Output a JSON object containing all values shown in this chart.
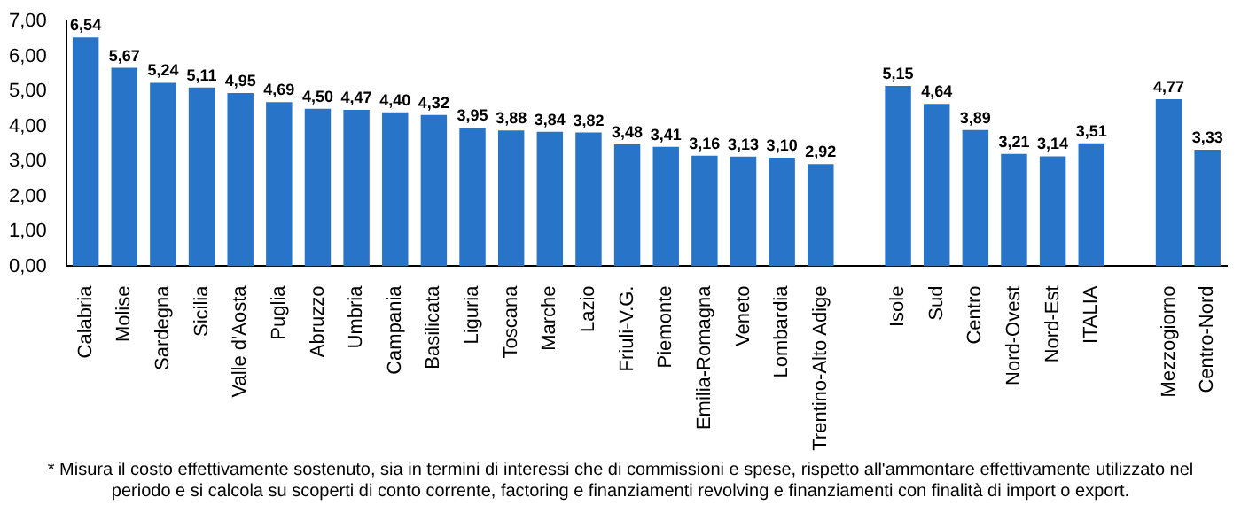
{
  "chart_data": {
    "type": "bar",
    "categories": [
      "Calabria",
      "Molise",
      "Sardegna",
      "Sicilia",
      "Valle d'Aosta",
      "Puglia",
      "Abruzzo",
      "Umbria",
      "Campania",
      "Basilicata",
      "Liguria",
      "Toscana",
      "Marche",
      "Lazio",
      "Friuli-V.G.",
      "Piemonte",
      "Emilia-Romagna",
      "Veneto",
      "Lombardia",
      "Trentino-Alto Adige",
      null,
      "Isole",
      "Sud",
      "Centro",
      "Nord-Ovest",
      "Nord-Est",
      "ITALIA",
      null,
      "Mezzogiorno",
      "Centro-Nord"
    ],
    "values": [
      6.54,
      5.67,
      5.24,
      5.11,
      4.95,
      4.69,
      4.5,
      4.47,
      4.4,
      4.32,
      3.95,
      3.88,
      3.84,
      3.82,
      3.48,
      3.41,
      3.16,
      3.13,
      3.1,
      2.92,
      null,
      5.15,
      4.64,
      3.89,
      3.21,
      3.14,
      3.51,
      null,
      4.77,
      3.33
    ],
    "value_labels": [
      "6,54",
      "5,67",
      "5,24",
      "5,11",
      "4,95",
      "4,69",
      "4,50",
      "4,47",
      "4,40",
      "4,32",
      "3,95",
      "3,88",
      "3,84",
      "3,82",
      "3,48",
      "3,41",
      "3,16",
      "3,13",
      "3,10",
      "2,92",
      null,
      "5,15",
      "4,64",
      "3,89",
      "3,21",
      "3,14",
      "3,51",
      null,
      "4,77",
      "3,33"
    ],
    "color": "#2874c8",
    "ylim": [
      0,
      7
    ],
    "yticks": [
      {
        "value": 0,
        "label": "0,00"
      },
      {
        "value": 1,
        "label": "1,00"
      },
      {
        "value": 2,
        "label": "2,00"
      },
      {
        "value": 3,
        "label": "3,00"
      },
      {
        "value": 4,
        "label": "4,00"
      },
      {
        "value": 5,
        "label": "5,00"
      },
      {
        "value": 6,
        "label": "6,00"
      },
      {
        "value": 7,
        "label": "7,00"
      }
    ],
    "grid": false,
    "legend": false,
    "annotations": [
      "* Misura il costo effettivamente sostenuto, sia in termini di interessi che di commissioni e spese, rispetto all'ammontare effettivamente utilizzato nel periodo e si calcola su scoperti di conto corrente, factoring e finanziamenti revolving e finanziamenti con finalità di import o export."
    ]
  }
}
